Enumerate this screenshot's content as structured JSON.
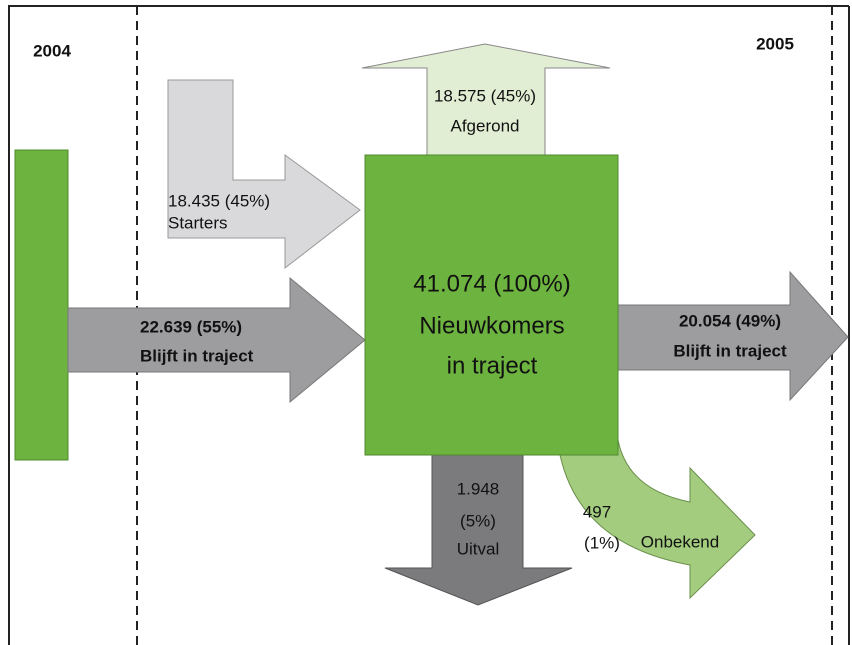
{
  "years": {
    "left": "2004",
    "right": "2005"
  },
  "center": {
    "lines": [
      "41.074 (100%)",
      "Nieuwkomers",
      "in traject"
    ]
  },
  "flows": {
    "starters": {
      "lines": [
        "18.435 (45%)",
        "Starters"
      ]
    },
    "inflow": {
      "lines": [
        "22.639 (55%)",
        "Blijft in traject"
      ]
    },
    "afgerond": {
      "lines": [
        "18.575 (45%)",
        "Afgerond"
      ]
    },
    "outflow": {
      "lines": [
        "20.054 (49%)",
        "Blijft in traject"
      ]
    },
    "uitval": {
      "lines": [
        "1.948",
        "(5%)",
        "Uitval"
      ]
    },
    "onbekend": {
      "lines": [
        "497",
        "(1%)",
        "Onbekend"
      ]
    }
  }
}
